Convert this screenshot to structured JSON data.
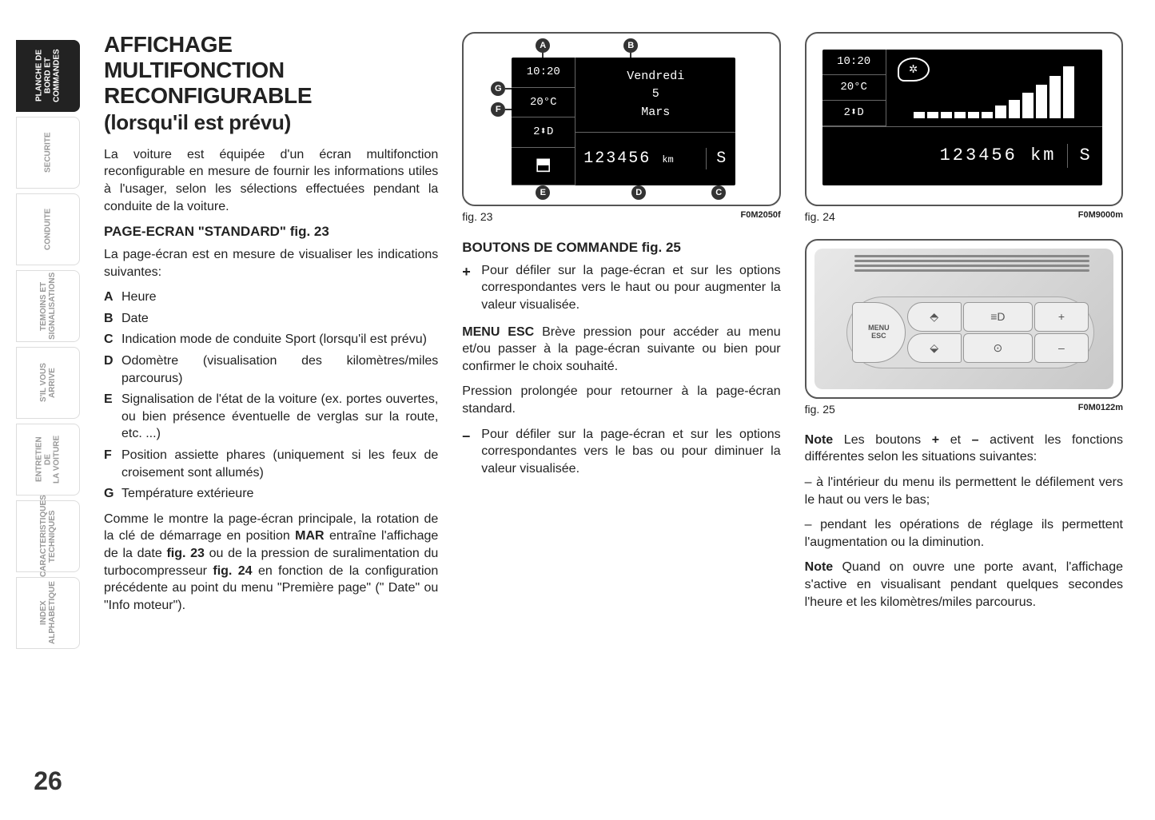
{
  "page_number": "26",
  "side_tabs": [
    {
      "label": "PLANCHE DE\nBORD ET\nCOMMANDES",
      "active": true
    },
    {
      "label": "SECURITE",
      "active": false
    },
    {
      "label": "CONDUITE",
      "active": false
    },
    {
      "label": "TEMOINS ET\nSIGNALISATIONS",
      "active": false
    },
    {
      "label": "S'IL VOUS\nARRIVE",
      "active": false
    },
    {
      "label": "ENTRETIEN DE\nLA VOITURE",
      "active": false
    },
    {
      "label": "CARACTERISTIQUES\nTECHNIQUES",
      "active": false
    },
    {
      "label": "INDEX\nALPHABETIQUE",
      "active": false
    }
  ],
  "col1": {
    "title_l1": "AFFICHAGE",
    "title_l2": "MULTIFONCTION",
    "title_l3": "RECONFIGURABLE",
    "title_sub": "(lorsqu'il est prévu)",
    "intro": "La voiture est équipée d'un écran multifonction reconfigurable en mesure de fournir les informations utiles à l'usager, selon les sélections effectuées pendant la conduite de la voiture.",
    "h2": "PAGE-ECRAN \"STANDARD\" fig. 23",
    "p2": "La page-écran est en mesure de visualiser les indications suivantes:",
    "items": [
      {
        "letter": "A",
        "text": "Heure"
      },
      {
        "letter": "B",
        "text": "Date"
      },
      {
        "letter": "C",
        "text": "Indication mode de conduite Sport (lorsqu'il est prévu)"
      },
      {
        "letter": "D",
        "text": "Odomètre (visualisation des kilomètres/miles parcourus)"
      },
      {
        "letter": "E",
        "text": "Signalisation de l'état de la voiture (ex. portes ouvertes, ou bien présence éventuelle de verglas sur la route, etc. ...)"
      },
      {
        "letter": "F",
        "text": "Position assiette phares (uniquement si les feux de croisement sont allumés)"
      },
      {
        "letter": "G",
        "text": "Température extérieure"
      }
    ],
    "footer_pre": "Comme le montre la page-écran principale, la rotation de la clé de démarrage en position ",
    "footer_b1": "MAR",
    "footer_mid1": " entraîne l'affichage de la date ",
    "footer_b2": "fig. 23",
    "footer_mid2": " ou de la pression de suralimentation du turbocompresseur ",
    "footer_b3": "fig. 24",
    "footer_end": " en fonction de la configuration précédente au point du menu \"Première page\" (\" Date\" ou \"Info moteur\")."
  },
  "col2": {
    "fig23": {
      "label": "fig. 23",
      "code": "F0M2050f",
      "callouts": {
        "A": "A",
        "B": "B",
        "C": "C",
        "D": "D",
        "E": "E",
        "F": "F",
        "G": "G"
      },
      "lcd": {
        "time": "10:20",
        "temp": "20°C",
        "headlamp": "2⬍D",
        "day": "Vendredi",
        "daynum": "5",
        "month": "Mars",
        "odo": "123456",
        "unit": "km",
        "sport": "S"
      }
    },
    "h2": "BOUTONS DE COMMANDE fig. 25",
    "btn_plus": {
      "sym": "+",
      "text": "Pour défiler sur la page-écran et sur les options correspondantes vers le haut ou pour augmenter la valeur visualisée."
    },
    "menu_esc_pre": "MENU ESC",
    "menu_esc_text": " Brève pression pour accéder au menu et/ou passer à la page-écran suivante ou bien pour confirmer le choix souhaité.",
    "p_long": "Pression prolongée pour retourner à la page-écran standard.",
    "btn_minus": {
      "sym": "–",
      "text": "Pour défiler sur la page-écran et sur les options correspondantes vers le bas ou pour diminuer la valeur visualisée."
    }
  },
  "col3": {
    "fig24": {
      "label": "fig. 24",
      "code": "F0M9000m",
      "lcd": {
        "time": "10:20",
        "temp": "20°C",
        "headlamp": "2⬍D",
        "odo": "123456",
        "unit": "km",
        "sport": "S",
        "gauge_bars": [
          10,
          10,
          10,
          10,
          10,
          10,
          20,
          30,
          42,
          55,
          70,
          85
        ]
      }
    },
    "fig25": {
      "label": "fig. 25",
      "code": "F0M0122m",
      "buttons": {
        "fog_rear": "⬘",
        "fog_front": "⬙",
        "light1": "≡D",
        "light2": "⊙",
        "plus": "+",
        "minus": "–",
        "menu": "MENU\nESC"
      }
    },
    "note1_b": "Note",
    "note1_pre": " Les boutons ",
    "note1_plus": "+",
    "note1_mid": " et ",
    "note1_minus": "–",
    "note1_end": " activent les fonctions différentes selon les situations suivantes:",
    "bullet1": "– à l'intérieur du menu ils permettent le défilement vers le haut ou vers le bas;",
    "bullet2": "– pendant les opérations de réglage ils permettent l'augmentation ou la diminution.",
    "note2_b": "Note",
    "note2_text": " Quand on ouvre une porte avant, l'affichage s'active en visualisant pendant quelques secondes l'heure et les kilomètres/miles parcourus."
  }
}
